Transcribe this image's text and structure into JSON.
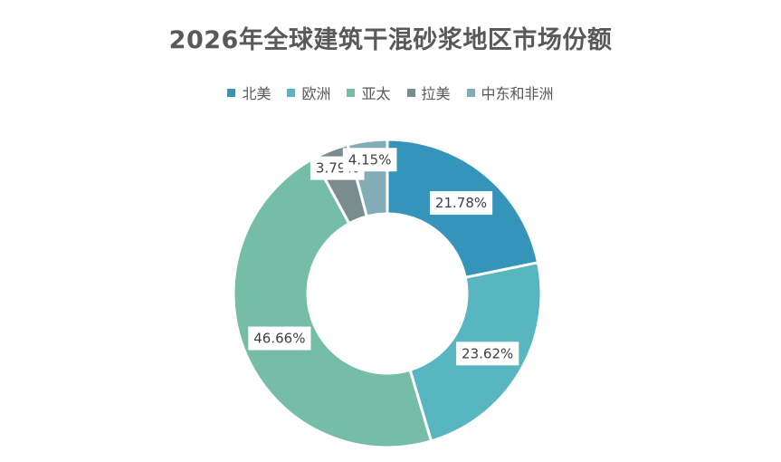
{
  "chart_data": {
    "type": "pie",
    "variant": "doughnut",
    "title": "2026年全球建筑干混砂浆地区市场份额",
    "legend_position": "top",
    "categories": [
      "北美",
      "欧洲",
      "亚太",
      "拉美",
      "中东和非洲"
    ],
    "values": [
      21.78,
      23.62,
      46.66,
      3.79,
      4.15
    ],
    "value_labels": [
      "21.78%",
      "23.62%",
      "46.66%",
      "3.79%",
      "4.15%"
    ],
    "colors": [
      "#3494BA",
      "#58B6C0",
      "#75BDA7",
      "#7A8C8E",
      "#84ACB6"
    ]
  }
}
